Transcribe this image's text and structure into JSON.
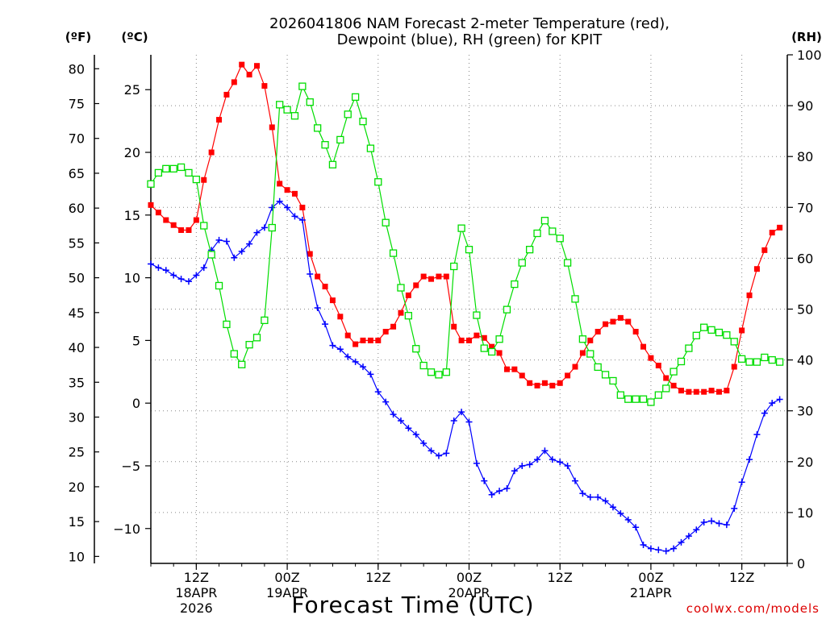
{
  "chart_data": {
    "type": "line",
    "title": "2026041806 NAM Forecast 2-meter Temperature (red),",
    "title_line2": "Dewpoint (blue), RH (green) for KPIT",
    "xlabel": "Forecast Time (UTC)",
    "credit": "coolwx.com/models",
    "left_units_f": "(ºF)",
    "left_units_c": "(ºC)",
    "right_units": "(RH)",
    "hours": [
      0,
      1,
      2,
      3,
      4,
      5,
      6,
      7,
      8,
      9,
      10,
      11,
      12,
      13,
      14,
      15,
      16,
      17,
      18,
      19,
      20,
      21,
      22,
      23,
      24,
      25,
      26,
      27,
      28,
      29,
      30,
      31,
      32,
      33,
      34,
      35,
      36,
      37,
      38,
      39,
      40,
      41,
      42,
      43,
      44,
      45,
      46,
      47,
      48,
      49,
      50,
      51,
      52,
      53,
      54,
      55,
      56,
      57,
      58,
      59,
      60,
      61,
      62,
      63,
      64,
      65,
      66,
      67,
      68,
      69,
      70,
      71,
      72,
      73,
      74,
      75,
      76,
      77,
      78,
      79,
      80,
      81,
      82,
      83,
      84
    ],
    "x_axis": {
      "ticks": [
        {
          "hour": 6,
          "label": "12Z",
          "date": "18APR",
          "year": "2026"
        },
        {
          "hour": 18,
          "label": "00Z",
          "date": "19APR",
          "year": ""
        },
        {
          "hour": 30,
          "label": "12Z",
          "date": "",
          "year": ""
        },
        {
          "hour": 42,
          "label": "00Z",
          "date": "20APR",
          "year": ""
        },
        {
          "hour": 54,
          "label": "12Z",
          "date": "",
          "year": ""
        },
        {
          "hour": 66,
          "label": "00Z",
          "date": "21APR",
          "year": ""
        },
        {
          "hour": 78,
          "label": "12Z",
          "date": "",
          "year": ""
        }
      ]
    },
    "y_left_c": {
      "range": [
        -12.78,
        27.78
      ],
      "ticks": [
        -10,
        -5,
        0,
        5,
        10,
        15,
        20,
        25
      ]
    },
    "y_left_f": {
      "range": [
        9,
        82
      ],
      "ticks": [
        10,
        15,
        20,
        25,
        30,
        35,
        40,
        45,
        50,
        55,
        60,
        65,
        70,
        75,
        80
      ]
    },
    "y_right": {
      "range": [
        0,
        100
      ],
      "ticks": [
        0,
        10,
        20,
        30,
        40,
        50,
        60,
        70,
        80,
        90,
        100
      ]
    },
    "grid": true,
    "series": [
      {
        "name": "Temperature (red)",
        "color": "#ff0000",
        "axis": "celsius",
        "values": [
          15.8,
          15.2,
          14.6,
          14.2,
          13.8,
          13.8,
          14.6,
          17.8,
          20.0,
          22.6,
          24.6,
          25.6,
          27.0,
          26.2,
          26.9,
          25.3,
          22.0,
          17.5,
          17.0,
          16.7,
          15.6,
          11.9,
          10.1,
          9.3,
          8.2,
          6.9,
          5.4,
          4.7,
          5.0,
          5.0,
          5.0,
          5.7,
          6.1,
          7.2,
          8.6,
          9.4,
          10.1,
          9.9,
          10.1,
          10.1,
          6.1,
          5.0,
          5.0,
          5.4,
          5.2,
          4.5,
          4.0,
          2.7,
          2.7,
          2.2,
          1.6,
          1.4,
          1.6,
          1.4,
          1.6,
          2.2,
          2.9,
          4.0,
          5.0,
          5.7,
          6.3,
          6.5,
          6.8,
          6.5,
          5.7,
          4.5,
          3.6,
          3.0,
          2.0,
          1.4,
          1.0,
          0.9,
          0.9,
          0.9,
          1.0,
          0.9,
          1.0,
          2.9,
          5.8,
          8.6,
          10.7,
          12.2,
          13.6,
          14.0
        ]
      },
      {
        "name": "Dewpoint (blue)",
        "color": "#0000ff",
        "axis": "celsius",
        "values": [
          11.1,
          10.8,
          10.6,
          10.2,
          9.9,
          9.7,
          10.2,
          10.8,
          12.2,
          13.0,
          12.9,
          11.6,
          12.1,
          12.7,
          13.6,
          14.0,
          15.6,
          16.1,
          15.6,
          14.9,
          14.6,
          10.3,
          7.6,
          6.3,
          4.6,
          4.3,
          3.7,
          3.3,
          2.9,
          2.3,
          0.9,
          0.1,
          -0.9,
          -1.4,
          -2.0,
          -2.5,
          -3.2,
          -3.8,
          -4.2,
          -4.0,
          -1.4,
          -0.7,
          -1.5,
          -4.8,
          -6.2,
          -7.3,
          -7.0,
          -6.8,
          -5.4,
          -5.0,
          -4.9,
          -4.5,
          -3.8,
          -4.5,
          -4.7,
          -5.0,
          -6.2,
          -7.2,
          -7.5,
          -7.5,
          -7.8,
          -8.3,
          -8.8,
          -9.3,
          -9.9,
          -11.3,
          -11.6,
          -11.7,
          -11.8,
          -11.6,
          -11.1,
          -10.6,
          -10.1,
          -9.5,
          -9.4,
          -9.6,
          -9.7,
          -8.4,
          -6.3,
          -4.5,
          -2.5,
          -0.8,
          0.0,
          0.3
        ]
      },
      {
        "name": "RH (green)",
        "color": "#00dd00",
        "axis": "rh",
        "values": [
          74.6,
          76.8,
          77.6,
          77.6,
          77.9,
          76.8,
          75.5,
          66.4,
          60.7,
          54.6,
          47.0,
          41.2,
          39.1,
          43.0,
          44.4,
          47.8,
          66.0,
          90.2,
          89.2,
          88.0,
          93.8,
          90.7,
          85.6,
          82.3,
          78.4,
          83.3,
          88.3,
          91.7,
          86.9,
          81.6,
          75.0,
          67.0,
          61.0,
          54.2,
          48.7,
          42.2,
          38.9,
          37.6,
          37.1,
          37.6,
          58.4,
          65.9,
          61.7,
          48.8,
          42.3,
          41.6,
          44.1,
          49.9,
          54.9,
          59.1,
          61.7,
          64.9,
          67.4,
          65.3,
          63.9,
          59.1,
          52.0,
          44.1,
          41.2,
          38.6,
          37.1,
          35.9,
          33.1,
          32.3,
          32.3,
          32.3,
          31.7,
          33.1,
          34.4,
          37.7,
          39.7,
          42.3,
          44.8,
          46.4,
          45.9,
          45.4,
          44.9,
          43.6,
          40.2,
          39.6,
          39.6,
          40.5,
          40.0,
          39.6
        ]
      }
    ]
  }
}
